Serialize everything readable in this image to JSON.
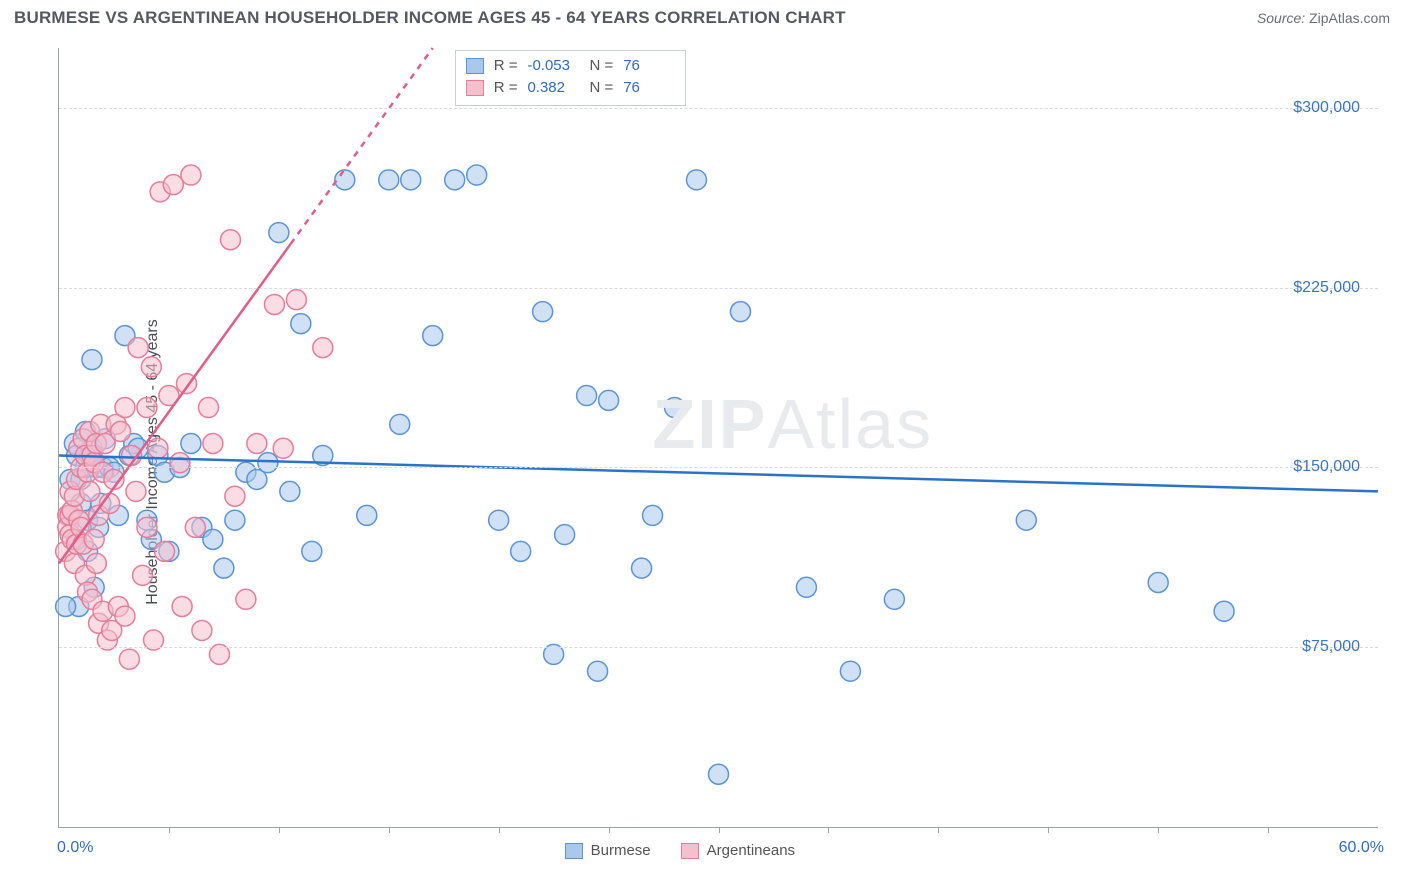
{
  "header": {
    "title": "BURMESE VS ARGENTINEAN HOUSEHOLDER INCOME AGES 45 - 64 YEARS CORRELATION CHART",
    "source_label": "Source:",
    "source_value": "ZipAtlas.com"
  },
  "chart": {
    "type": "scatter",
    "ylabel": "Householder Income Ages 45 - 64 years",
    "watermark_a": "ZIP",
    "watermark_b": "Atlas",
    "background_color": "#ffffff",
    "grid_color": "#d7dbe0",
    "axis_color": "#9aa2ad",
    "label_color": "#3b74c1",
    "xlim": [
      0,
      60
    ],
    "ylim": [
      0,
      325000
    ],
    "x_end_labels": {
      "min": "0.0%",
      "max": "60.0%"
    },
    "y_ticks": [
      75000,
      150000,
      225000,
      300000
    ],
    "y_tick_labels": [
      "$75,000",
      "$150,000",
      "$225,000",
      "$300,000"
    ],
    "x_ticks_pos": [
      5,
      10,
      15,
      20,
      25,
      30,
      35,
      40,
      45,
      50,
      55
    ],
    "marker_radius": 10,
    "marker_stroke_width": 1.5,
    "marker_opacity": 0.55,
    "trend_line_width": 2.5,
    "series": [
      {
        "name": "Burmese",
        "fill": "#a9c8ec",
        "stroke": "#5a95d6",
        "trend_color": "#2b73c7",
        "trend_dash": "none",
        "R": "-0.053",
        "N": "76",
        "trend": {
          "x1": 0,
          "y1": 155000,
          "x2": 60,
          "y2": 140000
        },
        "points": [
          [
            0.5,
            130000
          ],
          [
            0.5,
            145000
          ],
          [
            0.7,
            160000
          ],
          [
            0.8,
            155000
          ],
          [
            0.8,
            120000
          ],
          [
            0.9,
            92000
          ],
          [
            1.0,
            135000
          ],
          [
            1.0,
            145000
          ],
          [
            1.2,
            150000
          ],
          [
            1.2,
            165000
          ],
          [
            1.3,
            128000
          ],
          [
            1.3,
            115000
          ],
          [
            1.4,
            155000
          ],
          [
            1.5,
            158000
          ],
          [
            1.5,
            195000
          ],
          [
            1.6,
            100000
          ],
          [
            1.7,
            150000
          ],
          [
            1.8,
            125000
          ],
          [
            1.9,
            135000
          ],
          [
            2.0,
            150000
          ],
          [
            2.1,
            162000
          ],
          [
            2.3,
            150000
          ],
          [
            2.5,
            148000
          ],
          [
            2.7,
            130000
          ],
          [
            3.0,
            205000
          ],
          [
            3.2,
            155000
          ],
          [
            3.4,
            160000
          ],
          [
            3.6,
            158000
          ],
          [
            4.0,
            128000
          ],
          [
            4.2,
            120000
          ],
          [
            4.5,
            155000
          ],
          [
            4.8,
            148000
          ],
          [
            5.0,
            115000
          ],
          [
            5.5,
            150000
          ],
          [
            6.0,
            160000
          ],
          [
            6.5,
            125000
          ],
          [
            7.0,
            120000
          ],
          [
            7.5,
            108000
          ],
          [
            8.0,
            128000
          ],
          [
            8.5,
            148000
          ],
          [
            9.0,
            145000
          ],
          [
            9.5,
            152000
          ],
          [
            10.0,
            248000
          ],
          [
            10.5,
            140000
          ],
          [
            11.0,
            210000
          ],
          [
            11.5,
            115000
          ],
          [
            12.0,
            155000
          ],
          [
            13.0,
            270000
          ],
          [
            14.0,
            130000
          ],
          [
            15.0,
            270000
          ],
          [
            15.5,
            168000
          ],
          [
            16.0,
            270000
          ],
          [
            17.0,
            205000
          ],
          [
            18.0,
            270000
          ],
          [
            19.0,
            272000
          ],
          [
            20.0,
            128000
          ],
          [
            21.0,
            115000
          ],
          [
            22.0,
            215000
          ],
          [
            22.5,
            72000
          ],
          [
            23.0,
            122000
          ],
          [
            24.0,
            180000
          ],
          [
            24.5,
            65000
          ],
          [
            25.0,
            178000
          ],
          [
            26.5,
            108000
          ],
          [
            27.0,
            130000
          ],
          [
            28.0,
            175000
          ],
          [
            29.0,
            270000
          ],
          [
            30.0,
            22000
          ],
          [
            31.0,
            215000
          ],
          [
            34.0,
            100000
          ],
          [
            36.0,
            65000
          ],
          [
            38.0,
            95000
          ],
          [
            44.0,
            128000
          ],
          [
            50.0,
            102000
          ],
          [
            53.0,
            90000
          ],
          [
            0.3,
            92000
          ]
        ]
      },
      {
        "name": "Argentineans",
        "fill": "#f4c0cd",
        "stroke": "#e77d99",
        "trend_color": "#de5f87",
        "trend_dash": "5,5",
        "R": "0.382",
        "N": "76",
        "trend": {
          "x1": 0,
          "y1": 110000,
          "x2": 17,
          "y2": 325000
        },
        "points": [
          [
            0.3,
            115000
          ],
          [
            0.4,
            130000
          ],
          [
            0.4,
            125000
          ],
          [
            0.5,
            140000
          ],
          [
            0.5,
            130000
          ],
          [
            0.5,
            122000
          ],
          [
            0.6,
            120000
          ],
          [
            0.6,
            132000
          ],
          [
            0.7,
            138000
          ],
          [
            0.7,
            110000
          ],
          [
            0.8,
            145000
          ],
          [
            0.8,
            118000
          ],
          [
            0.9,
            158000
          ],
          [
            0.9,
            128000
          ],
          [
            1.0,
            125000
          ],
          [
            1.0,
            150000
          ],
          [
            1.1,
            162000
          ],
          [
            1.1,
            118000
          ],
          [
            1.2,
            155000
          ],
          [
            1.2,
            105000
          ],
          [
            1.3,
            98000
          ],
          [
            1.3,
            148000
          ],
          [
            1.4,
            140000
          ],
          [
            1.4,
            165000
          ],
          [
            1.5,
            95000
          ],
          [
            1.5,
            155000
          ],
          [
            1.6,
            152000
          ],
          [
            1.6,
            120000
          ],
          [
            1.7,
            110000
          ],
          [
            1.7,
            160000
          ],
          [
            1.8,
            130000
          ],
          [
            1.8,
            85000
          ],
          [
            1.9,
            168000
          ],
          [
            2.0,
            90000
          ],
          [
            2.0,
            148000
          ],
          [
            2.1,
            160000
          ],
          [
            2.2,
            78000
          ],
          [
            2.3,
            135000
          ],
          [
            2.4,
            82000
          ],
          [
            2.5,
            145000
          ],
          [
            2.6,
            168000
          ],
          [
            2.7,
            92000
          ],
          [
            2.8,
            165000
          ],
          [
            3.0,
            88000
          ],
          [
            3.0,
            175000
          ],
          [
            3.2,
            70000
          ],
          [
            3.3,
            155000
          ],
          [
            3.5,
            140000
          ],
          [
            3.6,
            200000
          ],
          [
            3.8,
            105000
          ],
          [
            4.0,
            175000
          ],
          [
            4.0,
            125000
          ],
          [
            4.2,
            192000
          ],
          [
            4.3,
            78000
          ],
          [
            4.5,
            158000
          ],
          [
            4.6,
            265000
          ],
          [
            4.8,
            115000
          ],
          [
            5.0,
            180000
          ],
          [
            5.2,
            268000
          ],
          [
            5.5,
            152000
          ],
          [
            5.6,
            92000
          ],
          [
            5.8,
            185000
          ],
          [
            6.0,
            272000
          ],
          [
            6.2,
            125000
          ],
          [
            6.5,
            82000
          ],
          [
            6.8,
            175000
          ],
          [
            7.0,
            160000
          ],
          [
            7.3,
            72000
          ],
          [
            7.8,
            245000
          ],
          [
            8.0,
            138000
          ],
          [
            8.5,
            95000
          ],
          [
            9.0,
            160000
          ],
          [
            9.8,
            218000
          ],
          [
            10.2,
            158000
          ],
          [
            10.8,
            220000
          ],
          [
            12.0,
            200000
          ]
        ]
      }
    ],
    "legend_top": {
      "R_label": "R =",
      "N_label": "N ="
    },
    "legend_bottom": {
      "items": [
        "Burmese",
        "Argentineans"
      ]
    }
  }
}
